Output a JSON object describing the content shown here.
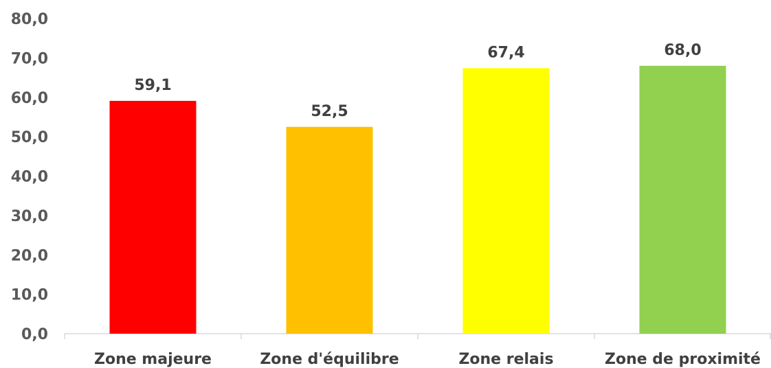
{
  "chart_data": {
    "type": "bar",
    "categories": [
      "Zone majeure",
      "Zone d'équilibre",
      "Zone relais",
      "Zone de proximité"
    ],
    "values": [
      59.1,
      52.5,
      67.4,
      68.0
    ],
    "value_labels": [
      "59,1",
      "52,5",
      "67,4",
      "68,0"
    ],
    "bar_colors": [
      "#ff0000",
      "#ffc000",
      "#ffff00",
      "#92d050"
    ],
    "yticks": [
      0,
      10,
      20,
      30,
      40,
      50,
      60,
      70,
      80
    ],
    "ytick_labels": [
      "0,0",
      "10,0",
      "20,0",
      "30,0",
      "40,0",
      "50,0",
      "60,0",
      "70,0",
      "80,0"
    ],
    "ylim": [
      0,
      80
    ],
    "grid": false,
    "legend": "none",
    "title": "",
    "xlabel": "",
    "ylabel": ""
  }
}
